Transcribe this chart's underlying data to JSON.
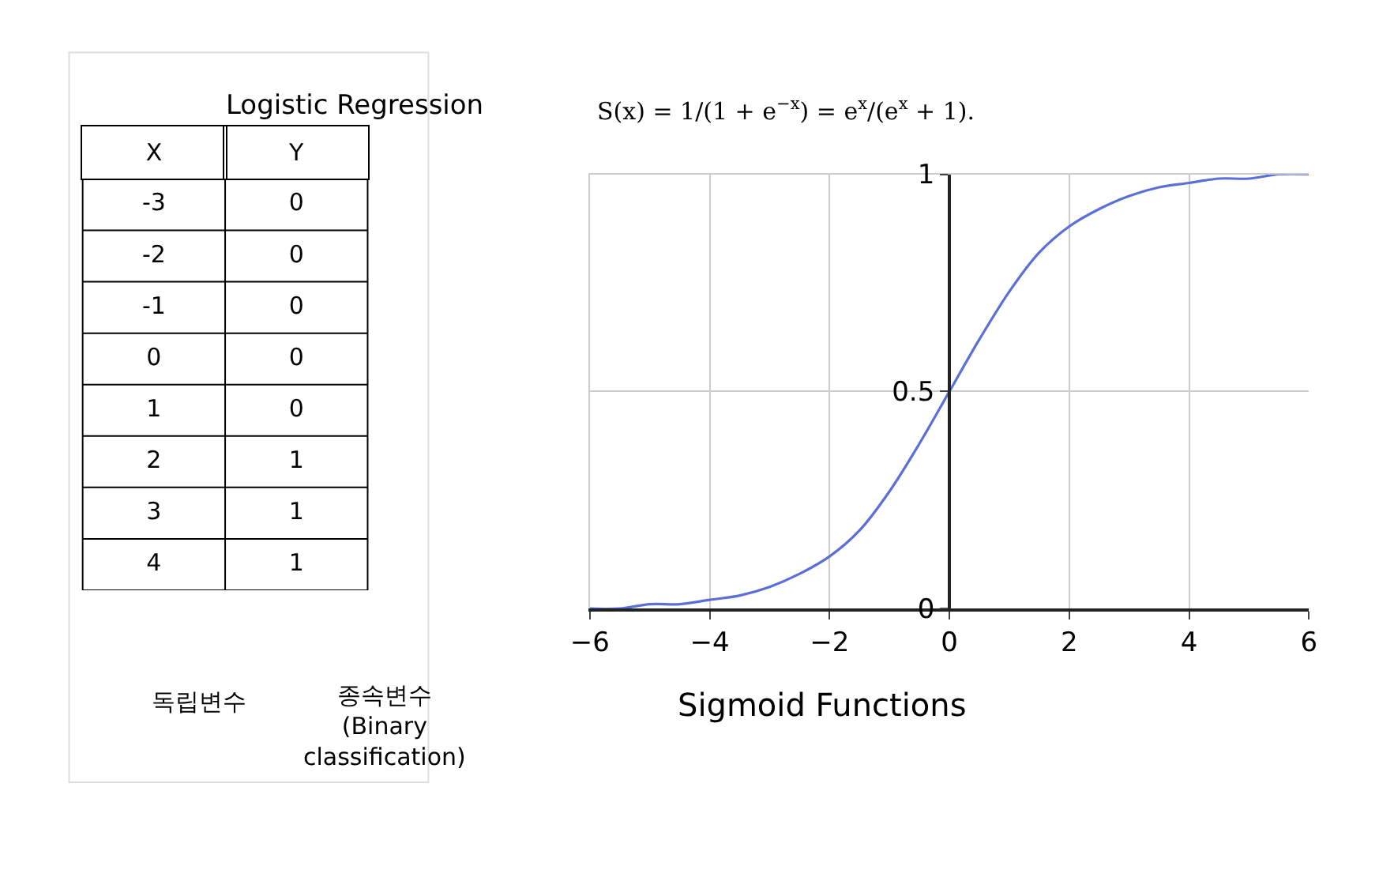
{
  "chart_data": [
    {
      "type": "heatmap",
      "title": "Logistic Regression",
      "categories": [
        "X",
        "Y"
      ],
      "y_categories": [
        null,
        null,
        null,
        null,
        null,
        null,
        null,
        null
      ],
      "cells": [
        [
          -3,
          0
        ],
        [
          -2,
          0
        ],
        [
          -1,
          0
        ],
        [
          0,
          0
        ],
        [
          1,
          0
        ],
        [
          2,
          1
        ],
        [
          3,
          1
        ],
        [
          4,
          1
        ]
      ],
      "data_labels": true,
      "annotations": [
        "독립변수",
        "종속변수\n(Binary\nclassification)"
      ]
    },
    {
      "type": "line",
      "title": "Sigmoid Functions",
      "subtitle": "S(x) = 1/(1 + e$^{−x}$) = e$^{x}$/(e$^{x}$ + 1).",
      "x": [
        -6,
        -5.5,
        -5,
        -4.5,
        -4,
        -3.5,
        -3,
        -2.5,
        -2,
        -1.5,
        -1,
        -0.5,
        0,
        0.5,
        1,
        1.5,
        2,
        2.5,
        3,
        3.5,
        4,
        4.5,
        5,
        5.5,
        6
      ],
      "series": [
        {
          "color": "#5b6fd8",
          "values": [
            0,
            0,
            0.01,
            0.01,
            0.02,
            0.03,
            0.05,
            0.08,
            0.12,
            0.18,
            0.27,
            0.38,
            0.5,
            0.62,
            0.73,
            0.82,
            0.88,
            0.92,
            0.95,
            0.97,
            0.98,
            0.99,
            0.99,
            1,
            1
          ]
        }
      ],
      "xlim": [
        -6,
        6
      ],
      "ylim": [
        0,
        1
      ],
      "xticks": [
        {
          "value": -6,
          "label": "−6"
        },
        {
          "value": -4,
          "label": "−4"
        },
        {
          "value": -2,
          "label": "−2"
        },
        {
          "value": 0,
          "label": "0"
        },
        2,
        4,
        6
      ],
      "yticks": [
        0,
        0.5,
        1
      ],
      "grid": true,
      "marker": "none",
      "line_style": "solid"
    }
  ]
}
